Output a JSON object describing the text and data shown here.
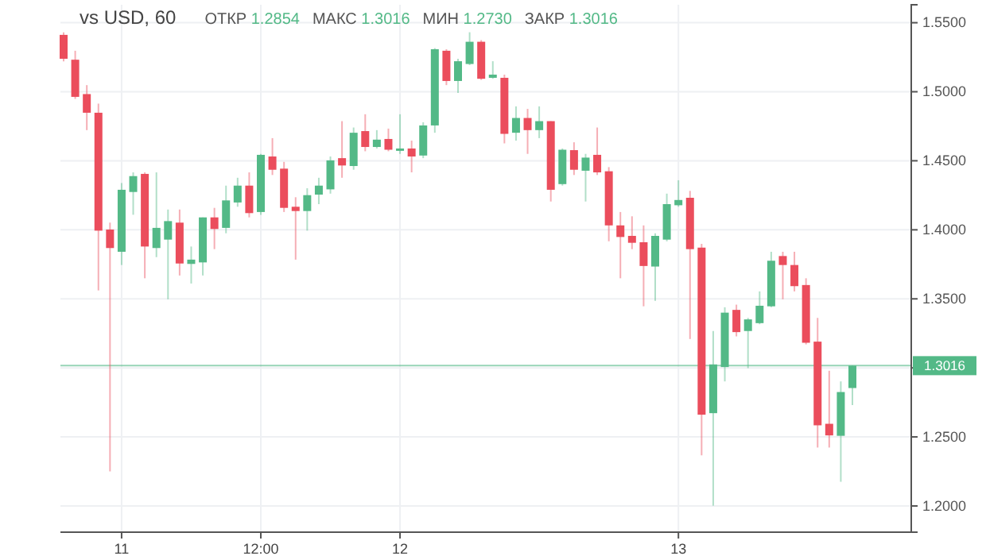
{
  "chart_data": {
    "type": "candlestick",
    "title": "vs USD, 60",
    "annotations": [
      "ОТКР 1.2854",
      "МАКС 1.3016",
      "МИН 1.2730",
      "ЗАКР 1.3016"
    ],
    "categories": [
      null,
      null,
      null,
      null,
      null,
      "11",
      null,
      null,
      null,
      null,
      null,
      null,
      null,
      null,
      null,
      null,
      null,
      "12:00",
      null,
      null,
      null,
      null,
      null,
      null,
      null,
      null,
      null,
      null,
      null,
      "12",
      null,
      null,
      null,
      null,
      null,
      null,
      null,
      null,
      null,
      null,
      null,
      null,
      null,
      null,
      null,
      null,
      null,
      null,
      null,
      null,
      null,
      null,
      null,
      "13",
      null,
      null,
      null,
      null,
      null,
      null,
      null,
      null,
      null,
      null,
      null,
      null,
      null,
      null,
      null
    ],
    "ohlc": [
      [
        1.5412,
        1.543,
        1.522,
        1.5239
      ],
      [
        1.5232,
        1.5297,
        1.4948,
        1.4963
      ],
      [
        1.4983,
        1.5048,
        1.4722,
        1.4848
      ],
      [
        1.4848,
        1.4914,
        1.3561,
        1.3994
      ],
      [
        1.4002,
        1.4052,
        1.225,
        1.3868
      ],
      [
        1.3841,
        1.4339,
        1.3745,
        1.429
      ],
      [
        1.4274,
        1.4416,
        1.4109,
        1.4389
      ],
      [
        1.4405,
        1.4416,
        1.3649,
        1.3879
      ],
      [
        1.3868,
        1.4416,
        1.3802,
        1.4014
      ],
      [
        1.3929,
        1.4147,
        1.3497,
        1.4063
      ],
      [
        1.4052,
        1.4147,
        1.3669,
        1.3756
      ],
      [
        1.3753,
        1.3879,
        1.3611,
        1.3784
      ],
      [
        1.3764,
        1.409,
        1.3669,
        1.409
      ],
      [
        1.409,
        1.4159,
        1.386,
        1.4006
      ],
      [
        1.4014,
        1.432,
        1.3975,
        1.4213
      ],
      [
        1.4198,
        1.4377,
        1.4167,
        1.432
      ],
      [
        1.432,
        1.4416,
        1.409,
        1.4121
      ],
      [
        1.4129,
        1.455,
        1.4109,
        1.4543
      ],
      [
        1.4531,
        1.4664,
        1.4397,
        1.4435
      ],
      [
        1.4443,
        1.4492,
        1.4129,
        1.4159
      ],
      [
        1.4167,
        1.4236,
        1.3784,
        1.4136
      ],
      [
        1.4136,
        1.4301,
        1.3994,
        1.4251
      ],
      [
        1.4255,
        1.4377,
        1.4186,
        1.432
      ],
      [
        1.4293,
        1.4531,
        1.4262,
        1.4503
      ],
      [
        1.4519,
        1.4787,
        1.4377,
        1.4466
      ],
      [
        1.4462,
        1.4741,
        1.4435,
        1.4703
      ],
      [
        1.4715,
        1.4837,
        1.4569,
        1.46
      ],
      [
        1.46,
        1.4722,
        1.4589,
        1.4653
      ],
      [
        1.4658,
        1.4733,
        1.4569,
        1.458
      ],
      [
        1.4572,
        1.4837,
        1.455,
        1.4589
      ],
      [
        1.4589,
        1.4646,
        1.4416,
        1.4531
      ],
      [
        1.4538,
        1.4779,
        1.4519,
        1.4756
      ],
      [
        1.4756,
        1.5316,
        1.4703,
        1.5308
      ],
      [
        1.5297,
        1.5308,
        1.5048,
        1.5078
      ],
      [
        1.5078,
        1.5239,
        1.4991,
        1.5221
      ],
      [
        1.5201,
        1.5431,
        1.5193,
        1.5362
      ],
      [
        1.5362,
        1.5374,
        1.5086,
        1.5094
      ],
      [
        1.5101,
        1.5221,
        1.5094,
        1.5124
      ],
      [
        1.5101,
        1.5124,
        1.4626,
        1.4695
      ],
      [
        1.4703,
        1.4894,
        1.4646,
        1.481
      ],
      [
        1.481,
        1.4876,
        1.455,
        1.4722
      ],
      [
        1.4722,
        1.4894,
        1.4664,
        1.4787
      ],
      [
        1.4787,
        1.4787,
        1.4205,
        1.429
      ],
      [
        1.4331,
        1.4589,
        1.432,
        1.458
      ],
      [
        1.4577,
        1.4634,
        1.4397,
        1.4435
      ],
      [
        1.4428,
        1.455,
        1.4205,
        1.4523
      ],
      [
        1.4543,
        1.4741,
        1.4397,
        1.4416
      ],
      [
        1.4424,
        1.4454,
        1.3917,
        1.4032
      ],
      [
        1.4032,
        1.4129,
        1.3649,
        1.3948
      ],
      [
        1.3956,
        1.4098,
        1.386,
        1.3906
      ],
      [
        1.391,
        1.4032,
        1.3446,
        1.3738
      ],
      [
        1.3734,
        1.3975,
        1.3485,
        1.3956
      ],
      [
        1.3929,
        1.4262,
        1.3917,
        1.4186
      ],
      [
        1.4178,
        1.4359,
        1.4167,
        1.4216
      ],
      [
        1.4232,
        1.4282,
        1.3209,
        1.386
      ],
      [
        1.3871,
        1.3899,
        1.2366,
        1.2661
      ],
      [
        1.2672,
        1.3267,
        1.2002,
        1.3025
      ],
      [
        1.3006,
        1.3439,
        1.2902,
        1.34
      ],
      [
        1.342,
        1.3458,
        1.3228,
        1.3259
      ],
      [
        1.3267,
        1.3362,
        1.2998,
        1.3351
      ],
      [
        1.3324,
        1.3554,
        1.3316,
        1.345
      ],
      [
        1.3446,
        1.3841,
        1.3439,
        1.3776
      ],
      [
        1.381,
        1.3841,
        1.3497,
        1.3745
      ],
      [
        1.3745,
        1.3841,
        1.3554,
        1.3592
      ],
      [
        1.36,
        1.3649,
        1.317,
        1.3182
      ],
      [
        1.319,
        1.3362,
        1.2423,
        1.2584
      ],
      [
        1.2595,
        1.2979,
        1.2423,
        1.2511
      ],
      [
        1.2508,
        1.2902,
        1.2175,
        1.2825
      ],
      [
        1.2854,
        1.3016,
        1.273,
        1.3016
      ]
    ],
    "colors": [
      "#eb4d5c",
      "#eb4d5c",
      "#eb4d5c",
      "#eb4d5c",
      "#eb4d5c",
      "#53b987",
      "#53b987",
      "#eb4d5c",
      "#53b987",
      "#53b987",
      "#eb4d5c",
      "#53b987",
      "#53b987",
      "#eb4d5c",
      "#53b987",
      "#53b987",
      "#eb4d5c",
      "#53b987",
      "#eb4d5c",
      "#eb4d5c",
      "#eb4d5c",
      "#53b987",
      "#53b987",
      "#53b987",
      "#eb4d5c",
      "#53b987",
      "#eb4d5c",
      "#53b987",
      "#eb4d5c",
      "#53b987",
      "#eb4d5c",
      "#53b987",
      "#53b987",
      "#eb4d5c",
      "#53b987",
      "#53b987",
      "#eb4d5c",
      "#53b987",
      "#eb4d5c",
      "#53b987",
      "#eb4d5c",
      "#53b987",
      "#eb4d5c",
      "#53b987",
      "#eb4d5c",
      "#53b987",
      "#eb4d5c",
      "#eb4d5c",
      "#eb4d5c",
      "#eb4d5c",
      "#eb4d5c",
      "#53b987",
      "#53b987",
      "#53b987",
      "#eb4d5c",
      "#eb4d5c",
      "#53b987",
      "#53b987",
      "#eb4d5c",
      "#53b987",
      "#53b987",
      "#53b987",
      "#eb4d5c",
      "#eb4d5c",
      "#eb4d5c",
      "#eb4d5c",
      "#eb4d5c",
      "#53b987",
      "#53b987"
    ],
    "ylim": [
      1.181,
      1.563
    ],
    "yticks": [
      {
        "value": 1.2,
        "label": "1.2000"
      },
      {
        "value": 1.25,
        "label": "1.2500"
      },
      {
        "value": 1.3,
        "label": null
      },
      {
        "value": 1.35,
        "label": "1.3500"
      },
      {
        "value": 1.4,
        "label": "1.4000"
      },
      {
        "value": 1.45,
        "label": "1.4500"
      },
      {
        "value": 1.5,
        "label": "1.5000"
      },
      {
        "value": 1.55,
        "label": "1.5500"
      }
    ],
    "ref_lines": [
      {
        "axis": "y",
        "value": 1.3016,
        "label": "1.3016",
        "color": "#53b987"
      }
    ],
    "grid": true
  }
}
